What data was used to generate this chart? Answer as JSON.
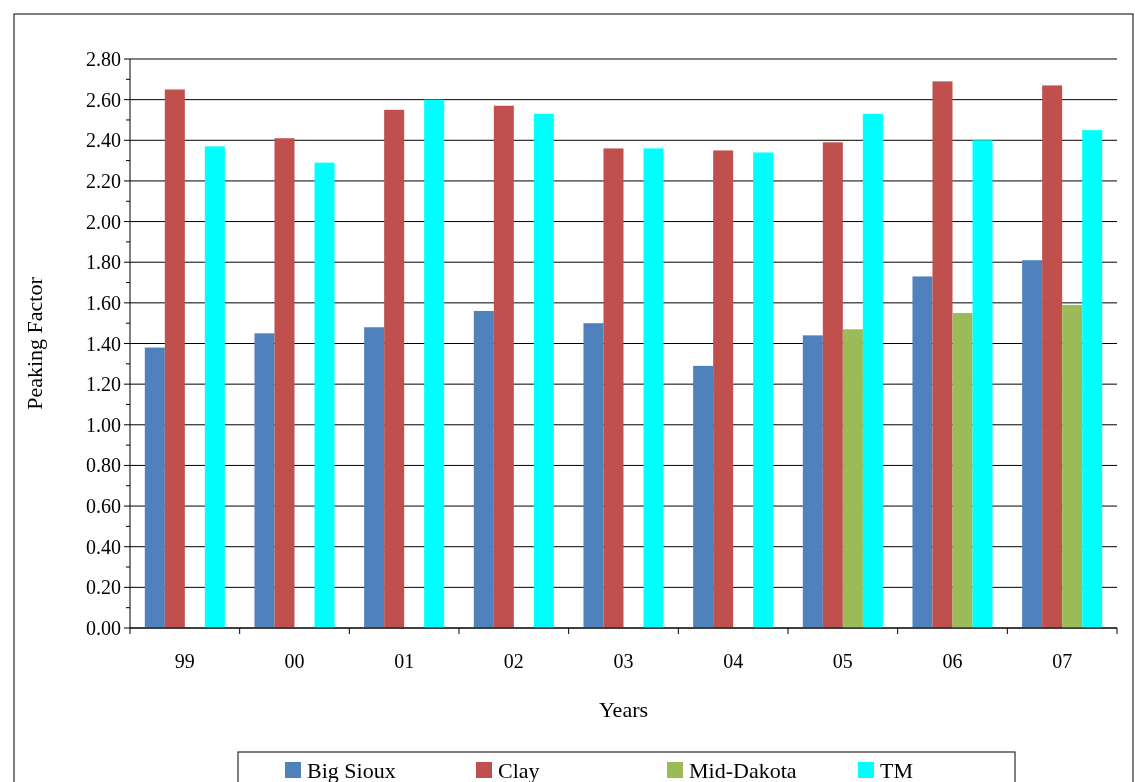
{
  "chart_data": {
    "type": "bar",
    "xlabel": "Years",
    "ylabel": "Peaking Factor",
    "categories": [
      "99",
      "00",
      "01",
      "02",
      "03",
      "04",
      "05",
      "06",
      "07"
    ],
    "series": [
      {
        "name": "Big Sioux",
        "color": "#4f81bd",
        "values": [
          1.38,
          1.45,
          1.48,
          1.56,
          1.5,
          1.29,
          1.44,
          1.73,
          1.81
        ]
      },
      {
        "name": "Clay",
        "color": "#c0504d",
        "values": [
          2.65,
          2.41,
          2.55,
          2.57,
          2.36,
          2.35,
          2.39,
          2.69,
          2.67
        ]
      },
      {
        "name": "Mid-Dakota",
        "color": "#9bbb59",
        "values": [
          null,
          null,
          null,
          null,
          null,
          null,
          1.47,
          1.55,
          1.59
        ]
      },
      {
        "name": "TM",
        "color": "#00ffff",
        "values": [
          2.37,
          2.29,
          2.6,
          2.53,
          2.36,
          2.34,
          2.53,
          2.4,
          2.45
        ]
      }
    ],
    "ylim": [
      0,
      2.8
    ],
    "yticks": [
      {
        "value": 0,
        "label": "0.00"
      },
      {
        "value": 0.2,
        "label": "0.20"
      },
      {
        "value": 0.4,
        "label": "0.40"
      },
      {
        "value": 0.6,
        "label": "0.60"
      },
      {
        "value": 0.8,
        "label": "0.80"
      },
      {
        "value": 1,
        "label": "1.00"
      },
      {
        "value": 1.2,
        "label": "1.20"
      },
      {
        "value": 1.4,
        "label": "1.40"
      },
      {
        "value": 1.6,
        "label": "1.60"
      },
      {
        "value": 1.8,
        "label": "1.80"
      },
      {
        "value": 2,
        "label": "2.00"
      },
      {
        "value": 2.2,
        "label": "2.20"
      },
      {
        "value": 2.4,
        "label": "2.40"
      },
      {
        "value": 2.6,
        "label": "2.60"
      },
      {
        "value": 2.8,
        "label": "2.80"
      }
    ],
    "grid": "y",
    "legend": "bottom"
  }
}
